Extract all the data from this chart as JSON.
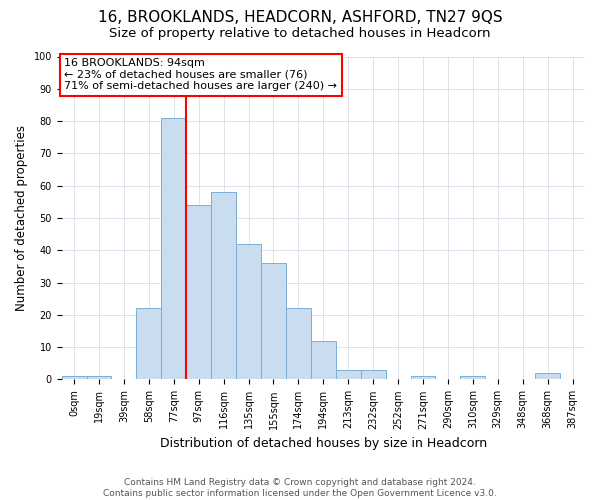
{
  "title": "16, BROOKLANDS, HEADCORN, ASHFORD, TN27 9QS",
  "subtitle": "Size of property relative to detached houses in Headcorn",
  "xlabel": "Distribution of detached houses by size in Headcorn",
  "ylabel": "Number of detached properties",
  "annotation_line1": "16 BROOKLANDS: 94sqm",
  "annotation_line2": "← 23% of detached houses are smaller (76)",
  "annotation_line3": "71% of semi-detached houses are larger (240) →",
  "footer1": "Contains HM Land Registry data © Crown copyright and database right 2024.",
  "footer2": "Contains public sector information licensed under the Open Government Licence v3.0.",
  "bin_labels": [
    "0sqm",
    "19sqm",
    "39sqm",
    "58sqm",
    "77sqm",
    "97sqm",
    "116sqm",
    "135sqm",
    "155sqm",
    "174sqm",
    "194sqm",
    "213sqm",
    "232sqm",
    "252sqm",
    "271sqm",
    "290sqm",
    "310sqm",
    "329sqm",
    "348sqm",
    "368sqm",
    "387sqm"
  ],
  "bar_values": [
    1,
    1,
    0,
    22,
    81,
    54,
    58,
    42,
    36,
    22,
    12,
    3,
    3,
    0,
    1,
    0,
    1,
    0,
    0,
    2,
    0
  ],
  "bar_color": "#c9dcf0",
  "bar_edge_color": "#7aafd4",
  "property_line_x": 4.5,
  "property_line_color": "red",
  "ylim": [
    0,
    100
  ],
  "yticks": [
    0,
    10,
    20,
    30,
    40,
    50,
    60,
    70,
    80,
    90,
    100
  ],
  "annotation_box_color": "white",
  "annotation_box_edge": "red",
  "title_fontsize": 11,
  "subtitle_fontsize": 9.5,
  "xlabel_fontsize": 9,
  "ylabel_fontsize": 8.5,
  "tick_fontsize": 7,
  "annotation_fontsize": 8,
  "footer_fontsize": 6.5
}
